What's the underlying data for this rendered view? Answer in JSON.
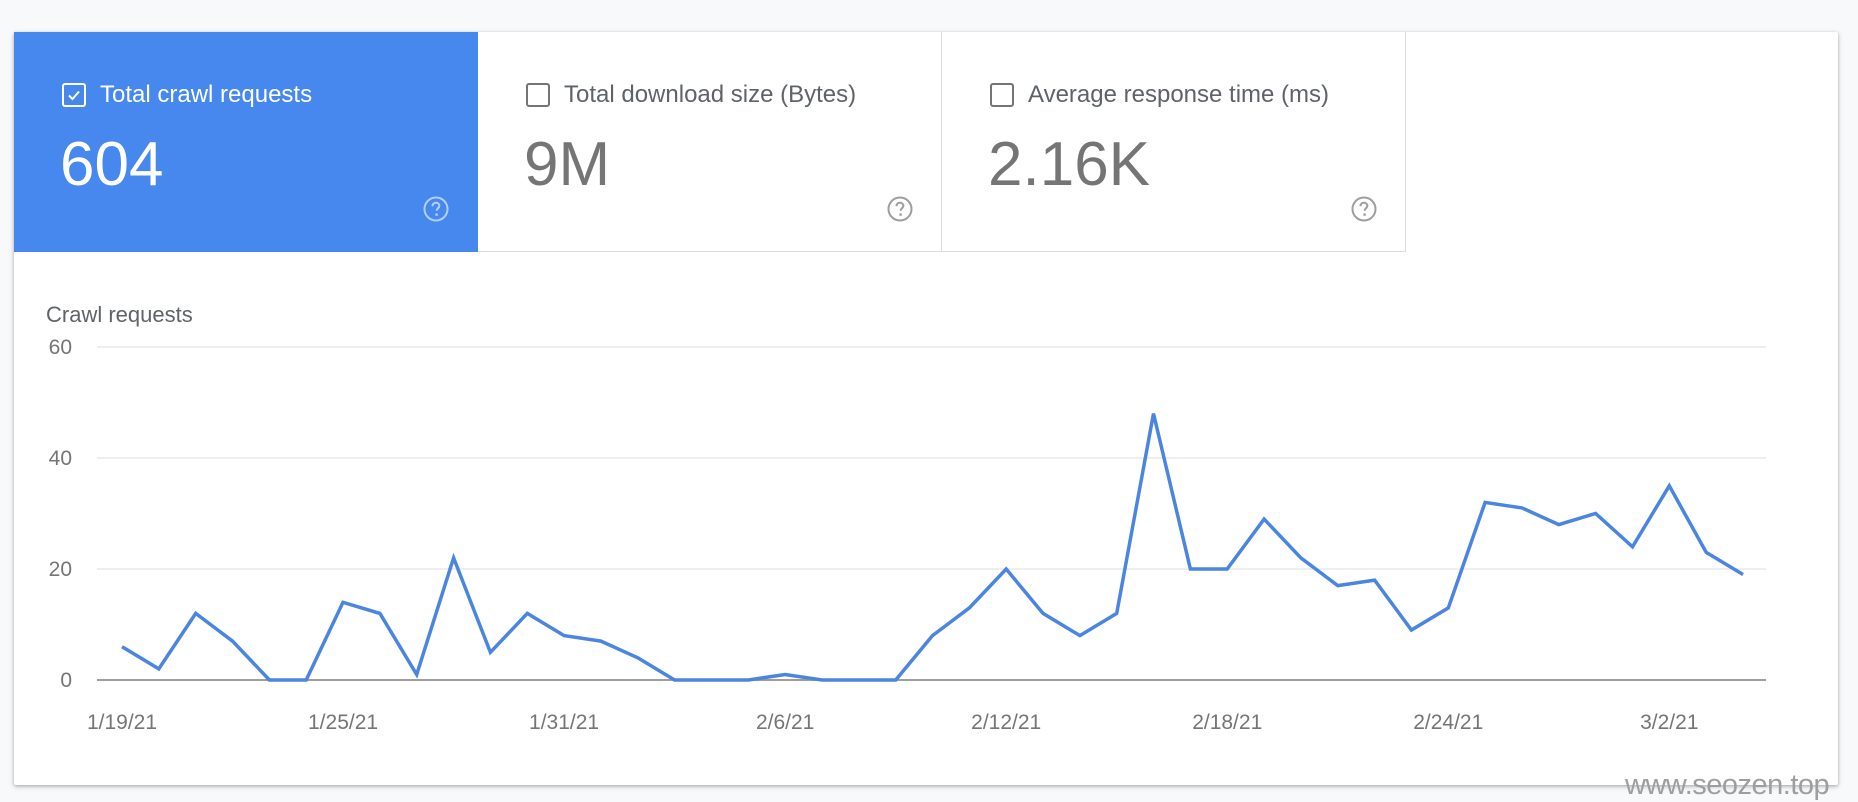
{
  "tiles": [
    {
      "label": "Total crawl requests",
      "value": "604",
      "selected": true
    },
    {
      "label": "Total download size (Bytes)",
      "value": "9M",
      "selected": false
    },
    {
      "label": "Average response time (ms)",
      "value": "2.16K",
      "selected": false
    }
  ],
  "icons": {
    "checkbox": "checkbox-icon",
    "help": "help-circle-icon"
  },
  "colors": {
    "accent": "#4688ee",
    "line": "#4a86e0",
    "grid": "#e8e8e8",
    "axis": "#9e9e9e",
    "text": "#757575"
  },
  "chart": {
    "title": "Crawl requests"
  },
  "watermark": "www.seozen.top",
  "chart_data": {
    "type": "line",
    "title": "Crawl requests",
    "xlabel": "",
    "ylabel": "Crawl requests",
    "ylim": [
      0,
      60
    ],
    "yticks": [
      0,
      20,
      40,
      60
    ],
    "grid": true,
    "legend": "none",
    "xtick_labels": [
      "1/19/21",
      "1/25/21",
      "1/31/21",
      "2/6/21",
      "2/12/21",
      "2/18/21",
      "2/24/21",
      "3/2/21"
    ],
    "x": [
      "1/19/21",
      "1/20/21",
      "1/21/21",
      "1/22/21",
      "1/23/21",
      "1/24/21",
      "1/25/21",
      "1/26/21",
      "1/27/21",
      "1/28/21",
      "1/29/21",
      "1/30/21",
      "1/31/21",
      "2/1/21",
      "2/2/21",
      "2/3/21",
      "2/4/21",
      "2/5/21",
      "2/6/21",
      "2/7/21",
      "2/8/21",
      "2/9/21",
      "2/10/21",
      "2/11/21",
      "2/12/21",
      "2/13/21",
      "2/14/21",
      "2/15/21",
      "2/16/21",
      "2/17/21",
      "2/18/21",
      "2/19/21",
      "2/20/21",
      "2/21/21",
      "2/22/21",
      "2/23/21",
      "2/24/21",
      "2/25/21",
      "2/26/21",
      "2/27/21",
      "2/28/21",
      "3/1/21",
      "3/2/21",
      "3/3/21",
      "3/4/21"
    ],
    "series": [
      {
        "name": "Total crawl requests",
        "values": [
          6,
          2,
          12,
          7,
          0,
          0,
          14,
          12,
          1,
          22,
          5,
          12,
          8,
          7,
          4,
          0,
          0,
          0,
          1,
          0,
          0,
          0,
          8,
          13,
          20,
          12,
          8,
          12,
          48,
          20,
          20,
          29,
          22,
          17,
          18,
          9,
          13,
          32,
          31,
          28,
          30,
          24,
          35,
          23,
          19
        ]
      }
    ]
  }
}
